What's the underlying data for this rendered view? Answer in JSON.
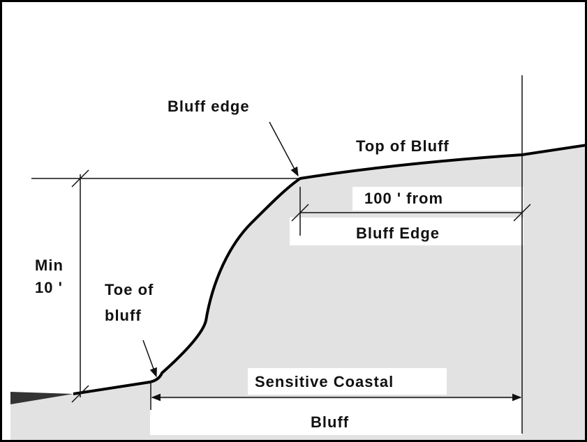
{
  "labels": {
    "bluff_edge": "Bluff edge",
    "top_of_bluff": "Top of Bluff",
    "from_line1": "100 ' from",
    "from_line2": "Bluff Edge",
    "min_line1": "Min",
    "min_line2": "10 '",
    "toe_line1": "Toe of",
    "toe_line2": "bluff",
    "sensitive_line1": "Sensitive Coastal",
    "sensitive_line2": "Bluff"
  }
}
